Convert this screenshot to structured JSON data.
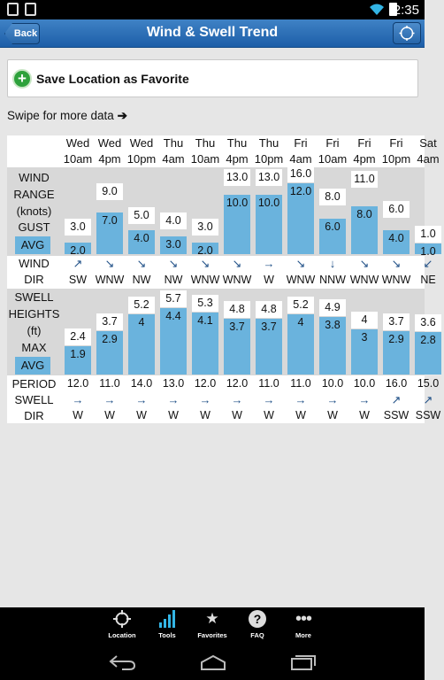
{
  "status_bar": {
    "time": "2:35"
  },
  "header": {
    "back_label": "Back",
    "title": "Wind & Swell Trend",
    "locate_icon": "crosshair-icon"
  },
  "favorite": {
    "label": "Save Location as Favorite"
  },
  "swipe_hint": {
    "text": "Swipe for more data",
    "arrow": "➔"
  },
  "row_labels": {
    "wind_range": [
      "WIND",
      "RANGE",
      "(knots)"
    ],
    "gust": "GUST",
    "avg": "AVG",
    "wind_dir": [
      "WIND",
      "DIR"
    ],
    "swell_heights": [
      "SWELL",
      "HEIGHTS",
      "(ft)"
    ],
    "max": "MAX",
    "swell_avg": "AVG",
    "period": "PERIOD",
    "swell_dir": [
      "SWELL",
      "DIR"
    ]
  },
  "columns": [
    {
      "day": "Wed",
      "time": "10am",
      "gust": "3.0",
      "avg": "2.0",
      "wind_dir": "SW",
      "wind_arrow": "↗",
      "swell_max": "2.4",
      "swell_avg": "1.9",
      "period": "12.0",
      "swell_arrow": "→",
      "swell_dir": "W"
    },
    {
      "day": "Wed",
      "time": "4pm",
      "gust": "9.0",
      "avg": "7.0",
      "wind_dir": "WNW",
      "wind_arrow": "↘",
      "swell_max": "3.7",
      "swell_avg": "2.9",
      "period": "11.0",
      "swell_arrow": "→",
      "swell_dir": "W"
    },
    {
      "day": "Wed",
      "time": "10pm",
      "gust": "5.0",
      "avg": "4.0",
      "wind_dir": "NW",
      "wind_arrow": "↘",
      "swell_max": "5.2",
      "swell_avg": "4",
      "period": "14.0",
      "swell_arrow": "→",
      "swell_dir": "W"
    },
    {
      "day": "Thu",
      "time": "4am",
      "gust": "4.0",
      "avg": "3.0",
      "wind_dir": "NW",
      "wind_arrow": "↘",
      "swell_max": "5.7",
      "swell_avg": "4.4",
      "period": "13.0",
      "swell_arrow": "→",
      "swell_dir": "W"
    },
    {
      "day": "Thu",
      "time": "10am",
      "gust": "3.0",
      "avg": "2.0",
      "wind_dir": "WNW",
      "wind_arrow": "↘",
      "swell_max": "5.3",
      "swell_avg": "4.1",
      "period": "12.0",
      "swell_arrow": "→",
      "swell_dir": "W"
    },
    {
      "day": "Thu",
      "time": "4pm",
      "gust": "13.0",
      "avg": "10.0",
      "wind_dir": "WNW",
      "wind_arrow": "↘",
      "swell_max": "4.8",
      "swell_avg": "3.7",
      "period": "12.0",
      "swell_arrow": "→",
      "swell_dir": "W"
    },
    {
      "day": "Thu",
      "time": "10pm",
      "gust": "13.0",
      "avg": "10.0",
      "wind_dir": "W",
      "wind_arrow": "→",
      "swell_max": "4.8",
      "swell_avg": "3.7",
      "period": "11.0",
      "swell_arrow": "→",
      "swell_dir": "W"
    },
    {
      "day": "Fri",
      "time": "4am",
      "gust": "16.0",
      "avg": "12.0",
      "wind_dir": "WNW",
      "wind_arrow": "↘",
      "swell_max": "5.2",
      "swell_avg": "4",
      "period": "11.0",
      "swell_arrow": "→",
      "swell_dir": "W"
    },
    {
      "day": "Fri",
      "time": "10am",
      "gust": "8.0",
      "avg": "6.0",
      "wind_dir": "NNW",
      "wind_arrow": "↓",
      "swell_max": "4.9",
      "swell_avg": "3.8",
      "period": "10.0",
      "swell_arrow": "→",
      "swell_dir": "W"
    },
    {
      "day": "Fri",
      "time": "4pm",
      "gust": "11.0",
      "avg": "8.0",
      "wind_dir": "WNW",
      "wind_arrow": "↘",
      "swell_max": "4",
      "swell_avg": "3",
      "period": "10.0",
      "swell_arrow": "→",
      "swell_dir": "W"
    },
    {
      "day": "Fri",
      "time": "10pm",
      "gust": "6.0",
      "avg": "4.0",
      "wind_dir": "WNW",
      "wind_arrow": "↘",
      "swell_max": "3.7",
      "swell_avg": "2.9",
      "period": "16.0",
      "swell_arrow": "↗",
      "swell_dir": "SSW"
    },
    {
      "day": "Sat",
      "time": "4am",
      "gust": "1.0",
      "avg": "1.0",
      "wind_dir": "NE",
      "wind_arrow": "↙",
      "swell_max": "3.6",
      "swell_avg": "2.8",
      "period": "15.0",
      "swell_arrow": "↗",
      "swell_dir": "SSW"
    }
  ],
  "bottom_nav": [
    {
      "label": "Location",
      "icon": "crosshair-icon"
    },
    {
      "label": "Tools",
      "icon": "signal-bars-icon"
    },
    {
      "label": "Favorites",
      "icon": "star-icon"
    },
    {
      "label": "FAQ",
      "icon": "help-icon"
    },
    {
      "label": "More",
      "icon": "more-icon"
    }
  ],
  "system_nav": {
    "back_icon": "back-icon",
    "home_icon": "home-icon",
    "recents_icon": "recents-icon"
  }
}
